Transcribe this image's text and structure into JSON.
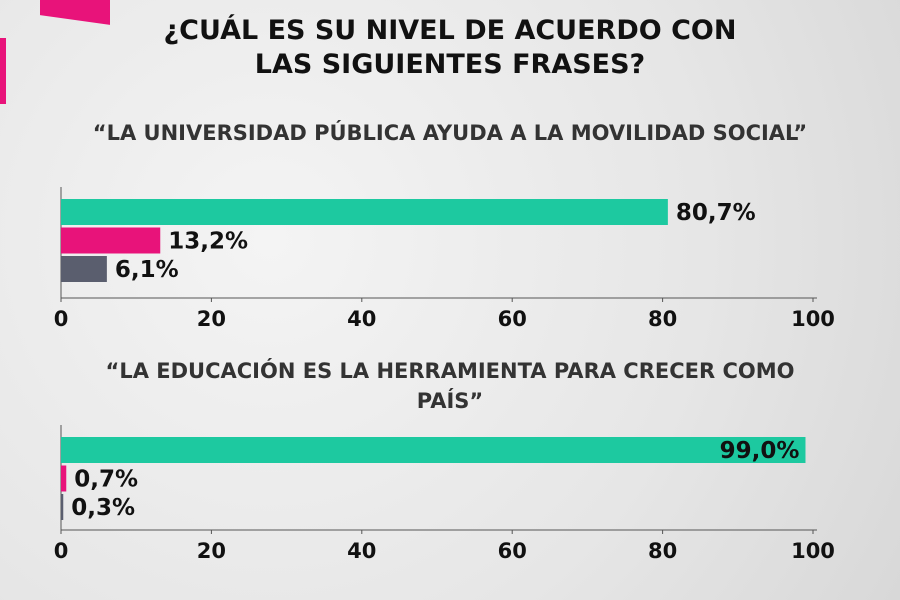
{
  "title": [
    "¿CUÁL ES SU NIVEL DE ACUERDO CON",
    "LAS SIGUIENTES FRASES?"
  ],
  "colors": {
    "acuerdo": "#1dc9a0",
    "desacuerdo": "#e8137a",
    "otro": "#5a5e6e"
  },
  "chart_data": [
    {
      "type": "bar",
      "orientation": "horizontal",
      "title": "“LA UNIVERSIDAD PÚBLICA AYUDA A LA MOVILIDAD SOCIAL”",
      "values": [
        80.7,
        13.2,
        6.1
      ],
      "labels": [
        "80,7%",
        "13,2%",
        "6,1%"
      ],
      "xlim": [
        0,
        100
      ],
      "ticks": [
        "0",
        "20",
        "40",
        "60",
        "80",
        "100"
      ]
    },
    {
      "type": "bar",
      "orientation": "horizontal",
      "title": "“LA EDUCACIÓN ES LA HERRAMIENTA PARA CRECER COMO PAÍS”",
      "values": [
        99.0,
        0.7,
        0.3
      ],
      "labels": [
        "99,0%",
        "0,7%",
        "0,3%"
      ],
      "xlim": [
        0,
        100
      ],
      "ticks": [
        "0",
        "20",
        "40",
        "60",
        "80",
        "100"
      ]
    }
  ]
}
